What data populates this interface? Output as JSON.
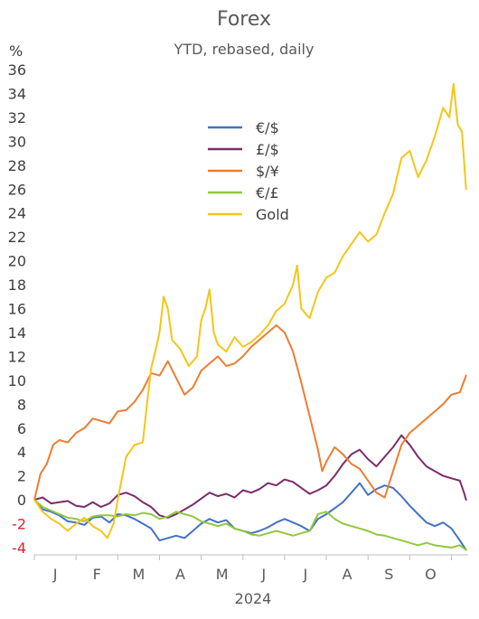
{
  "chart_data": {
    "type": "line",
    "title": "Forex",
    "subtitle": "YTD, rebased, daily",
    "y_unit": "%",
    "year_label": "2024",
    "ylim": [
      -4,
      36
    ],
    "y_ticks": [
      -4,
      -2,
      0,
      2,
      4,
      6,
      8,
      10,
      12,
      14,
      16,
      18,
      20,
      22,
      24,
      26,
      28,
      30,
      32,
      34,
      36
    ],
    "negative_tick_color": "#e0202e",
    "positive_tick_color": "#404040",
    "x_months": [
      "J",
      "F",
      "M",
      "A",
      "M",
      "J",
      "J",
      "A",
      "S",
      "O"
    ],
    "xlim": [
      0,
      10.4
    ],
    "grid": false,
    "legend_placement": "top-center",
    "series": [
      {
        "name": "€/$",
        "color": "#4472c4",
        "points": [
          [
            0,
            0
          ],
          [
            0.2,
            -0.8
          ],
          [
            0.4,
            -1.0
          ],
          [
            0.6,
            -1.3
          ],
          [
            0.8,
            -1.8
          ],
          [
            1.0,
            -1.9
          ],
          [
            1.2,
            -2.1
          ],
          [
            1.4,
            -1.5
          ],
          [
            1.6,
            -1.4
          ],
          [
            1.8,
            -1.9
          ],
          [
            2.0,
            -1.2
          ],
          [
            2.2,
            -1.3
          ],
          [
            2.4,
            -1.6
          ],
          [
            2.6,
            -2.0
          ],
          [
            2.8,
            -2.4
          ],
          [
            3.0,
            -3.4
          ],
          [
            3.2,
            -3.2
          ],
          [
            3.4,
            -3.0
          ],
          [
            3.6,
            -3.2
          ],
          [
            3.8,
            -2.6
          ],
          [
            4.0,
            -2.0
          ],
          [
            4.2,
            -1.6
          ],
          [
            4.4,
            -1.9
          ],
          [
            4.6,
            -1.7
          ],
          [
            4.8,
            -2.4
          ],
          [
            5.0,
            -2.6
          ],
          [
            5.2,
            -2.8
          ],
          [
            5.4,
            -2.6
          ],
          [
            5.6,
            -2.3
          ],
          [
            5.8,
            -1.9
          ],
          [
            6.0,
            -1.6
          ],
          [
            6.2,
            -1.9
          ],
          [
            6.4,
            -2.2
          ],
          [
            6.6,
            -2.6
          ],
          [
            6.8,
            -1.6
          ],
          [
            7.0,
            -1.2
          ],
          [
            7.2,
            -0.7
          ],
          [
            7.4,
            -0.2
          ],
          [
            7.6,
            0.6
          ],
          [
            7.8,
            1.4
          ],
          [
            8.0,
            0.4
          ],
          [
            8.2,
            0.9
          ],
          [
            8.4,
            1.2
          ],
          [
            8.6,
            1.0
          ],
          [
            8.8,
            0.3
          ],
          [
            9.0,
            -0.5
          ],
          [
            9.2,
            -1.2
          ],
          [
            9.4,
            -1.9
          ],
          [
            9.6,
            -2.2
          ],
          [
            9.8,
            -1.9
          ],
          [
            10.0,
            -2.4
          ],
          [
            10.2,
            -3.4
          ],
          [
            10.35,
            -4.2
          ]
        ]
      },
      {
        "name": "£/$",
        "color": "#7b2c6b",
        "points": [
          [
            0,
            0
          ],
          [
            0.2,
            0.2
          ],
          [
            0.4,
            -0.3
          ],
          [
            0.6,
            -0.2
          ],
          [
            0.8,
            -0.1
          ],
          [
            1.0,
            -0.5
          ],
          [
            1.2,
            -0.6
          ],
          [
            1.4,
            -0.2
          ],
          [
            1.6,
            -0.6
          ],
          [
            1.8,
            -0.3
          ],
          [
            2.0,
            0.4
          ],
          [
            2.2,
            0.6
          ],
          [
            2.4,
            0.3
          ],
          [
            2.6,
            -0.2
          ],
          [
            2.8,
            -0.6
          ],
          [
            3.0,
            -1.3
          ],
          [
            3.2,
            -1.5
          ],
          [
            3.4,
            -1.2
          ],
          [
            3.6,
            -0.8
          ],
          [
            3.8,
            -0.4
          ],
          [
            4.0,
            0.1
          ],
          [
            4.2,
            0.6
          ],
          [
            4.4,
            0.3
          ],
          [
            4.6,
            0.5
          ],
          [
            4.8,
            0.2
          ],
          [
            5.0,
            0.8
          ],
          [
            5.2,
            0.6
          ],
          [
            5.4,
            0.9
          ],
          [
            5.6,
            1.4
          ],
          [
            5.8,
            1.2
          ],
          [
            6.0,
            1.7
          ],
          [
            6.2,
            1.5
          ],
          [
            6.4,
            1.0
          ],
          [
            6.6,
            0.5
          ],
          [
            6.8,
            0.8
          ],
          [
            7.0,
            1.2
          ],
          [
            7.2,
            2.0
          ],
          [
            7.4,
            3.0
          ],
          [
            7.6,
            3.8
          ],
          [
            7.8,
            4.2
          ],
          [
            8.0,
            3.4
          ],
          [
            8.2,
            2.8
          ],
          [
            8.4,
            3.6
          ],
          [
            8.6,
            4.4
          ],
          [
            8.8,
            5.4
          ],
          [
            9.0,
            4.6
          ],
          [
            9.2,
            3.6
          ],
          [
            9.4,
            2.8
          ],
          [
            9.6,
            2.4
          ],
          [
            9.8,
            2.0
          ],
          [
            10.0,
            1.8
          ],
          [
            10.2,
            1.6
          ],
          [
            10.3,
            0.6
          ],
          [
            10.35,
            0.0
          ]
        ]
      },
      {
        "name": "$/¥",
        "color": "#ed7d31",
        "points": [
          [
            0,
            0
          ],
          [
            0.15,
            2.2
          ],
          [
            0.3,
            3.0
          ],
          [
            0.45,
            4.6
          ],
          [
            0.6,
            5.0
          ],
          [
            0.8,
            4.8
          ],
          [
            1.0,
            5.6
          ],
          [
            1.2,
            6.0
          ],
          [
            1.4,
            6.8
          ],
          [
            1.6,
            6.6
          ],
          [
            1.8,
            6.4
          ],
          [
            2.0,
            7.4
          ],
          [
            2.2,
            7.5
          ],
          [
            2.4,
            8.2
          ],
          [
            2.6,
            9.2
          ],
          [
            2.8,
            10.6
          ],
          [
            3.0,
            10.4
          ],
          [
            3.2,
            11.6
          ],
          [
            3.4,
            10.2
          ],
          [
            3.6,
            8.8
          ],
          [
            3.8,
            9.4
          ],
          [
            4.0,
            10.8
          ],
          [
            4.2,
            11.4
          ],
          [
            4.4,
            12.0
          ],
          [
            4.6,
            11.2
          ],
          [
            4.8,
            11.4
          ],
          [
            5.0,
            12.0
          ],
          [
            5.2,
            12.8
          ],
          [
            5.4,
            13.4
          ],
          [
            5.6,
            14.0
          ],
          [
            5.8,
            14.6
          ],
          [
            6.0,
            14.0
          ],
          [
            6.2,
            12.4
          ],
          [
            6.4,
            9.8
          ],
          [
            6.6,
            7.0
          ],
          [
            6.8,
            4.2
          ],
          [
            6.9,
            2.4
          ],
          [
            7.0,
            3.2
          ],
          [
            7.2,
            4.4
          ],
          [
            7.4,
            3.8
          ],
          [
            7.6,
            3.0
          ],
          [
            7.8,
            2.6
          ],
          [
            8.0,
            1.6
          ],
          [
            8.2,
            0.6
          ],
          [
            8.4,
            0.2
          ],
          [
            8.6,
            2.4
          ],
          [
            8.8,
            4.6
          ],
          [
            9.0,
            5.6
          ],
          [
            9.2,
            6.2
          ],
          [
            9.4,
            6.8
          ],
          [
            9.6,
            7.4
          ],
          [
            9.8,
            8.0
          ],
          [
            10.0,
            8.8
          ],
          [
            10.2,
            9.0
          ],
          [
            10.35,
            10.4
          ]
        ]
      },
      {
        "name": "€/£",
        "color": "#92c83e",
        "points": [
          [
            0,
            0
          ],
          [
            0.2,
            -0.6
          ],
          [
            0.4,
            -0.9
          ],
          [
            0.6,
            -1.2
          ],
          [
            0.8,
            -1.5
          ],
          [
            1.0,
            -1.6
          ],
          [
            1.2,
            -1.8
          ],
          [
            1.4,
            -1.4
          ],
          [
            1.6,
            -1.3
          ],
          [
            1.8,
            -1.3
          ],
          [
            2.0,
            -1.4
          ],
          [
            2.2,
            -1.2
          ],
          [
            2.4,
            -1.3
          ],
          [
            2.6,
            -1.1
          ],
          [
            2.8,
            -1.2
          ],
          [
            3.0,
            -1.6
          ],
          [
            3.2,
            -1.4
          ],
          [
            3.4,
            -1.0
          ],
          [
            3.6,
            -1.2
          ],
          [
            3.8,
            -1.4
          ],
          [
            4.0,
            -1.8
          ],
          [
            4.2,
            -2.0
          ],
          [
            4.4,
            -2.2
          ],
          [
            4.6,
            -2.0
          ],
          [
            4.8,
            -2.4
          ],
          [
            5.0,
            -2.6
          ],
          [
            5.2,
            -2.9
          ],
          [
            5.4,
            -3.0
          ],
          [
            5.6,
            -2.8
          ],
          [
            5.8,
            -2.6
          ],
          [
            6.0,
            -2.8
          ],
          [
            6.2,
            -3.0
          ],
          [
            6.4,
            -2.8
          ],
          [
            6.6,
            -2.6
          ],
          [
            6.8,
            -1.2
          ],
          [
            7.0,
            -1.0
          ],
          [
            7.2,
            -1.6
          ],
          [
            7.4,
            -2.0
          ],
          [
            7.6,
            -2.2
          ],
          [
            7.8,
            -2.4
          ],
          [
            8.0,
            -2.6
          ],
          [
            8.2,
            -2.9
          ],
          [
            8.4,
            -3.0
          ],
          [
            8.6,
            -3.2
          ],
          [
            8.8,
            -3.4
          ],
          [
            9.0,
            -3.6
          ],
          [
            9.2,
            -3.8
          ],
          [
            9.4,
            -3.6
          ],
          [
            9.6,
            -3.8
          ],
          [
            9.8,
            -3.9
          ],
          [
            10.0,
            -4.0
          ],
          [
            10.2,
            -3.8
          ],
          [
            10.35,
            -4.2
          ]
        ]
      },
      {
        "name": "Gold",
        "color": "#f5c518",
        "points": [
          [
            0,
            0
          ],
          [
            0.2,
            -1.0
          ],
          [
            0.4,
            -1.6
          ],
          [
            0.6,
            -2.0
          ],
          [
            0.8,
            -2.6
          ],
          [
            1.0,
            -2.0
          ],
          [
            1.2,
            -1.5
          ],
          [
            1.4,
            -2.2
          ],
          [
            1.6,
            -2.6
          ],
          [
            1.75,
            -3.2
          ],
          [
            1.9,
            -2.0
          ],
          [
            2.0,
            0.0
          ],
          [
            2.2,
            3.6
          ],
          [
            2.4,
            4.6
          ],
          [
            2.6,
            4.8
          ],
          [
            2.7,
            8.0
          ],
          [
            2.8,
            11.0
          ],
          [
            2.9,
            12.4
          ],
          [
            3.0,
            14.0
          ],
          [
            3.1,
            17.0
          ],
          [
            3.2,
            16.0
          ],
          [
            3.3,
            13.4
          ],
          [
            3.5,
            12.6
          ],
          [
            3.7,
            11.2
          ],
          [
            3.9,
            12.0
          ],
          [
            4.0,
            15.0
          ],
          [
            4.1,
            16.0
          ],
          [
            4.2,
            17.6
          ],
          [
            4.3,
            14.0
          ],
          [
            4.4,
            13.0
          ],
          [
            4.6,
            12.4
          ],
          [
            4.8,
            13.6
          ],
          [
            5.0,
            12.8
          ],
          [
            5.2,
            13.2
          ],
          [
            5.4,
            13.8
          ],
          [
            5.6,
            14.6
          ],
          [
            5.8,
            15.8
          ],
          [
            6.0,
            16.4
          ],
          [
            6.2,
            18.0
          ],
          [
            6.3,
            19.6
          ],
          [
            6.4,
            16.0
          ],
          [
            6.6,
            15.2
          ],
          [
            6.8,
            17.4
          ],
          [
            7.0,
            18.6
          ],
          [
            7.2,
            19.0
          ],
          [
            7.4,
            20.4
          ],
          [
            7.6,
            21.4
          ],
          [
            7.8,
            22.4
          ],
          [
            8.0,
            21.6
          ],
          [
            8.2,
            22.2
          ],
          [
            8.4,
            24.0
          ],
          [
            8.6,
            25.6
          ],
          [
            8.8,
            28.6
          ],
          [
            9.0,
            29.2
          ],
          [
            9.2,
            27.0
          ],
          [
            9.4,
            28.4
          ],
          [
            9.6,
            30.4
          ],
          [
            9.8,
            32.8
          ],
          [
            9.95,
            32.0
          ],
          [
            10.05,
            34.8
          ],
          [
            10.15,
            31.4
          ],
          [
            10.25,
            30.8
          ],
          [
            10.35,
            26.0
          ]
        ]
      }
    ]
  }
}
